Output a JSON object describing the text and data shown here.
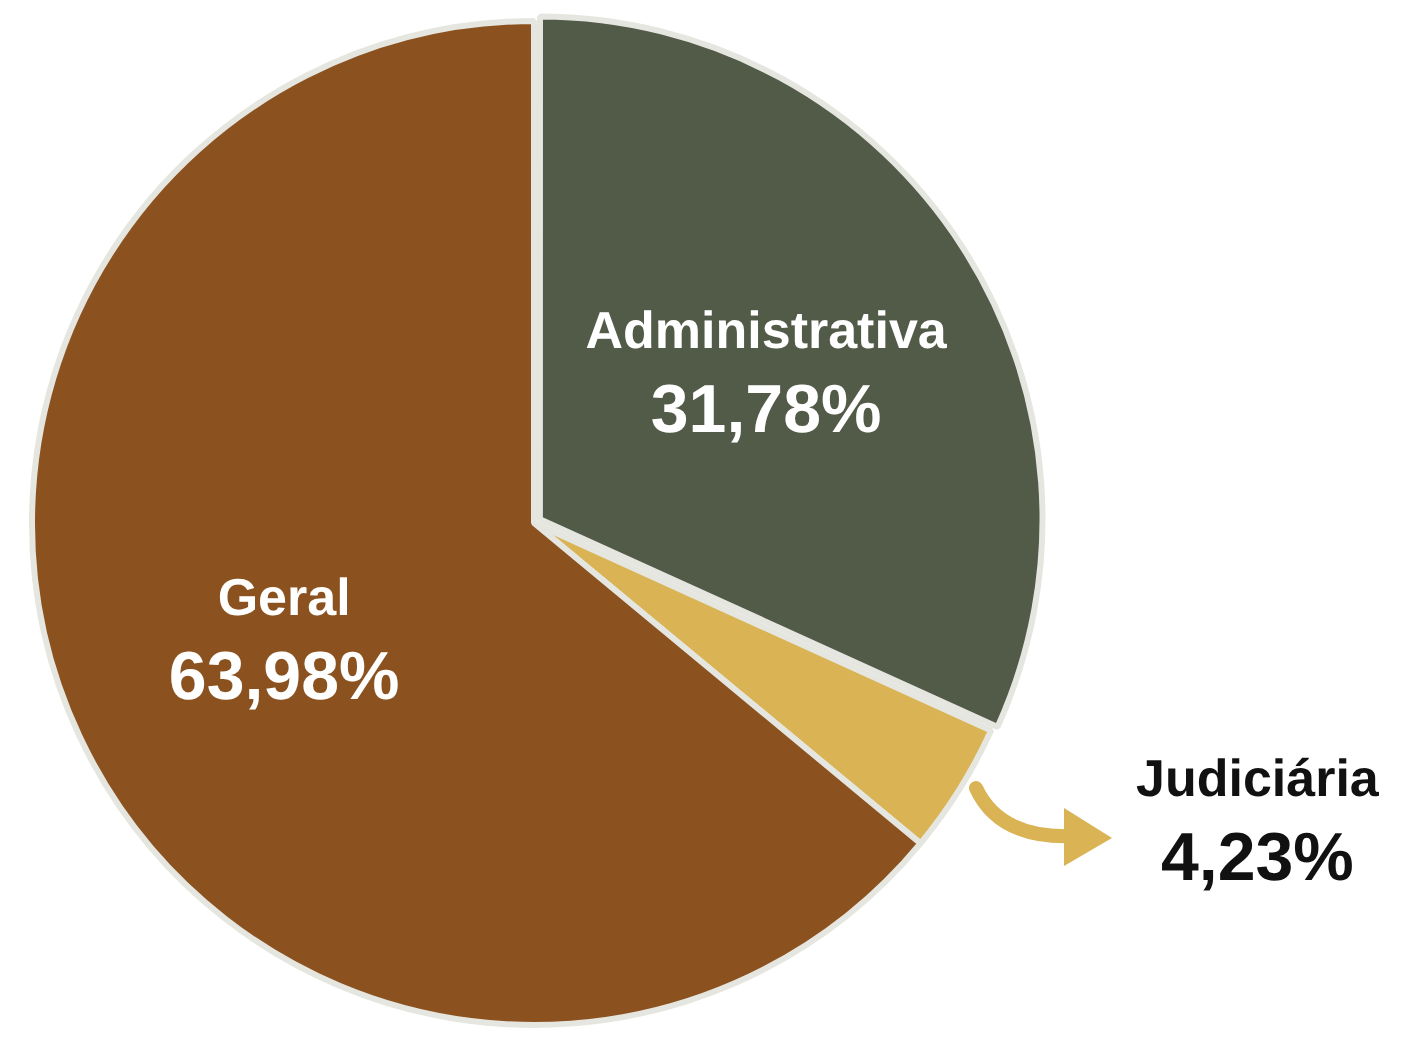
{
  "chart_data": {
    "type": "pie",
    "categories": [
      "Administrativa",
      "Judiciária",
      "Geral"
    ],
    "values": [
      31.78,
      4.23,
      63.98
    ],
    "colors": [
      "#525a48",
      "#d9b354",
      "#8b5220"
    ],
    "value_labels": [
      "31,78%",
      "4,23%",
      "63,98%"
    ]
  }
}
